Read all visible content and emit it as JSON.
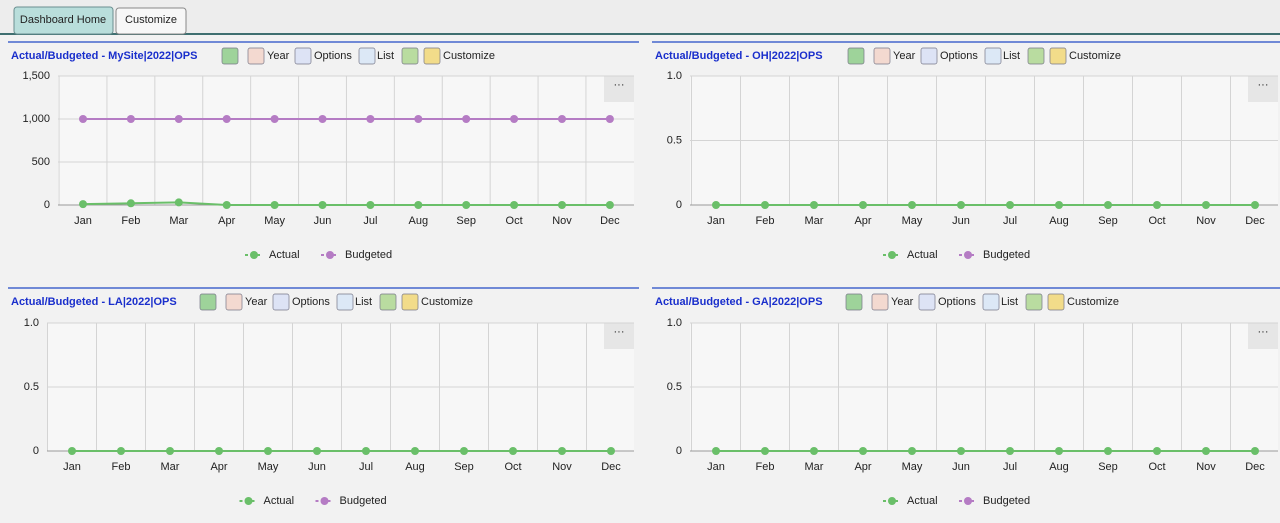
{
  "tabs": [
    "Dashboard Home",
    "Customize"
  ],
  "toolbar": [
    "Year",
    "Options",
    "List",
    "Customize"
  ],
  "chart_data": [
    {
      "type": "line",
      "title": "Actual/Budgeted - MySite|2022|OPS",
      "categories": [
        "Jan",
        "Feb",
        "Mar",
        "Apr",
        "May",
        "Jun",
        "Jul",
        "Aug",
        "Sep",
        "Oct",
        "Nov",
        "Dec"
      ],
      "series": [
        {
          "name": "Actual",
          "color": "#6abf69",
          "values": [
            10,
            20,
            30,
            0,
            0,
            0,
            0,
            0,
            0,
            0,
            0,
            0
          ]
        },
        {
          "name": "Budgeted",
          "color": "#b57cc4",
          "values": [
            1000,
            1000,
            1000,
            1000,
            1000,
            1000,
            1000,
            1000,
            1000,
            1000,
            1000,
            1000
          ]
        }
      ],
      "ylim": [
        0,
        1500
      ],
      "yticks": [
        0,
        500,
        {
          "value": 1000,
          "label": "1,000"
        },
        {
          "value": 1500,
          "label": "1,500"
        }
      ],
      "grid": true
    },
    {
      "type": "line",
      "title": "Actual/Budgeted - OH|2022|OPS",
      "categories": [
        "Jan",
        "Feb",
        "Mar",
        "Apr",
        "May",
        "Jun",
        "Jul",
        "Aug",
        "Sep",
        "Oct",
        "Nov",
        "Dec"
      ],
      "series": [
        {
          "name": "Actual",
          "color": "#6abf69",
          "values": [
            0,
            0,
            0,
            0,
            0,
            0,
            0,
            0,
            0,
            0,
            0,
            0
          ]
        },
        {
          "name": "Budgeted",
          "color": "#b57cc4",
          "values": [
            null,
            null,
            null,
            null,
            null,
            null,
            null,
            null,
            null,
            null,
            null,
            null
          ]
        }
      ],
      "ylim": [
        0,
        1
      ],
      "yticks": [
        0,
        0.5,
        {
          "value": 1,
          "label": "1.0"
        }
      ],
      "grid": true
    },
    {
      "type": "line",
      "title": "Actual/Budgeted - LA|2022|OPS",
      "categories": [
        "Jan",
        "Feb",
        "Mar",
        "Apr",
        "May",
        "Jun",
        "Jul",
        "Aug",
        "Sep",
        "Oct",
        "Nov",
        "Dec"
      ],
      "series": [
        {
          "name": "Actual",
          "color": "#6abf69",
          "values": [
            0,
            0,
            0,
            0,
            0,
            0,
            0,
            0,
            0,
            0,
            0,
            0
          ]
        },
        {
          "name": "Budgeted",
          "color": "#b57cc4",
          "values": [
            null,
            null,
            null,
            null,
            null,
            null,
            null,
            null,
            null,
            null,
            null,
            null
          ]
        }
      ],
      "ylim": [
        0,
        1
      ],
      "yticks": [
        0,
        0.5,
        {
          "value": 1,
          "label": "1.0"
        }
      ],
      "grid": true
    },
    {
      "type": "line",
      "title": "Actual/Budgeted - GA|2022|OPS",
      "categories": [
        "Jan",
        "Feb",
        "Mar",
        "Apr",
        "May",
        "Jun",
        "Jul",
        "Aug",
        "Sep",
        "Oct",
        "Nov",
        "Dec"
      ],
      "series": [
        {
          "name": "Actual",
          "color": "#6abf69",
          "values": [
            0,
            0,
            0,
            0,
            0,
            0,
            0,
            0,
            0,
            0,
            0,
            0
          ]
        },
        {
          "name": "Budgeted",
          "color": "#b57cc4",
          "values": [
            null,
            null,
            null,
            null,
            null,
            null,
            null,
            null,
            null,
            null,
            null,
            null
          ]
        }
      ],
      "ylim": [
        0,
        1
      ],
      "yticks": [
        0,
        0.5,
        {
          "value": 1,
          "label": "1.0"
        }
      ],
      "grid": true
    }
  ]
}
